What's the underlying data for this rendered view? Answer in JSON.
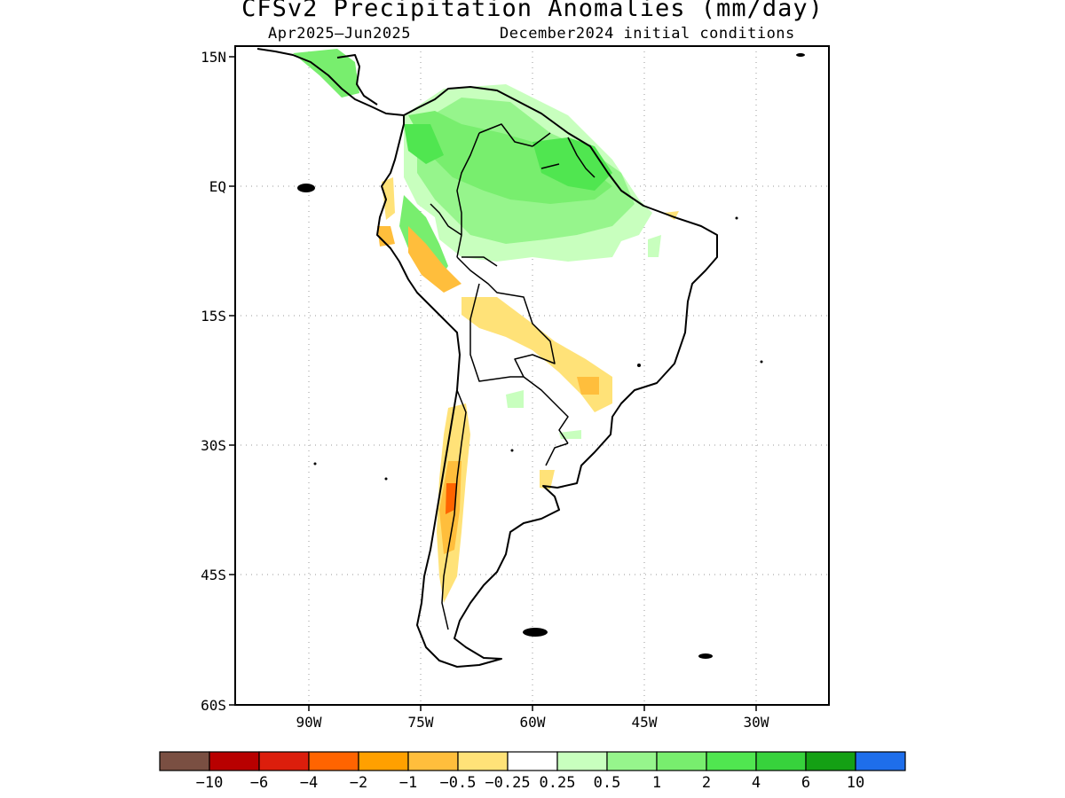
{
  "title": "CFSv2 Precipitation Anomalies (mm/day)",
  "subtitle_left": "Apr2025–Jun2025",
  "subtitle_right": "December2024 initial conditions",
  "map": {
    "lat_labels": [
      "15N",
      "EQ",
      "15S",
      "30S",
      "45S",
      "60S"
    ],
    "lon_labels": [
      "90W",
      "75W",
      "60W",
      "45W",
      "30W"
    ],
    "grid": true,
    "region": "South America"
  },
  "colorbar": {
    "colors": [
      "#7a4f42",
      "#b80000",
      "#dc1e0c",
      "#ff6400",
      "#ffa000",
      "#ffbe3c",
      "#ffe278",
      "#ffffff",
      "#c8ffbe",
      "#96f58c",
      "#78ee6e",
      "#50e650",
      "#37d23c",
      "#14a014",
      "#1e6eeb"
    ],
    "labels": [
      "−10",
      "−6",
      "−4",
      "−2",
      "−1",
      "−0.5",
      "−0.25",
      "0.25",
      "0.5",
      "1",
      "2",
      "4",
      "6",
      "10"
    ]
  }
}
